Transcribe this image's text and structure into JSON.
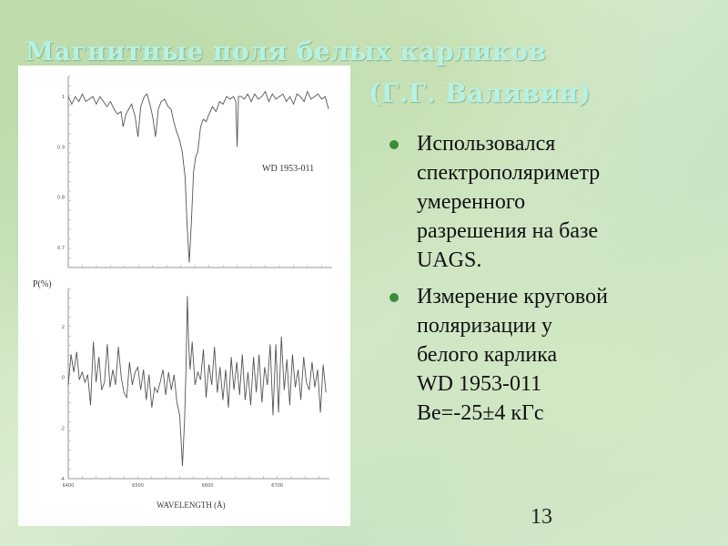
{
  "slide": {
    "title_line1": "Магнитные поля белых карликов",
    "title_line2": "(Г.Г. Валявин)",
    "title_color": "#b6f2e4",
    "bullet_color": "#3e8a3a",
    "bullets": [
      {
        "lines": [
          "Использовался",
          "спектрополяриметр",
          "умеренного",
          "разрешения на базе",
          "UAGS."
        ]
      },
      {
        "lines": [
          "Измерение круговой",
          "поляризации у",
          "белого карлика",
          "WD 1953-011",
          "Be=-25±4 кГс"
        ]
      }
    ],
    "page_number": "13"
  },
  "chart_data": [
    {
      "type": "line",
      "annotation": "WD 1953-011",
      "xlim": [
        6400,
        6775
      ],
      "ylim": [
        0.66,
        1.04
      ],
      "yticks": [
        "1",
        "0.9",
        "0.8",
        "0.7"
      ],
      "ytick_values": [
        1,
        0.9,
        0.8,
        0.7
      ],
      "x": [
        6400,
        6405,
        6410,
        6415,
        6420,
        6425,
        6430,
        6435,
        6440,
        6445,
        6450,
        6455,
        6460,
        6465,
        6470,
        6475,
        6478,
        6482,
        6486,
        6490,
        6495,
        6499,
        6503,
        6508,
        6512,
        6516,
        6520,
        6524,
        6528,
        6532,
        6537,
        6542,
        6546,
        6550,
        6554,
        6558,
        6562,
        6566,
        6569,
        6572,
        6575,
        6578,
        6581,
        6584,
        6588,
        6592,
        6596,
        6600,
        6605,
        6610,
        6615,
        6620,
        6625,
        6630,
        6635,
        6638,
        6640,
        6642,
        6646,
        6650,
        6655,
        6660,
        6665,
        6670,
        6675,
        6680,
        6685,
        6690,
        6695,
        6700,
        6705,
        6710,
        6715,
        6720,
        6725,
        6730,
        6735,
        6740,
        6745,
        6750,
        6755,
        6760,
        6765,
        6770
      ],
      "y": [
        1.0,
        0.985,
        1.0,
        0.99,
        1.005,
        0.99,
        0.995,
        1.0,
        0.985,
        1.0,
        0.99,
        0.98,
        0.99,
        0.975,
        0.965,
        0.97,
        0.94,
        0.965,
        0.975,
        0.985,
        0.96,
        0.92,
        0.98,
        1.0,
        1.005,
        0.985,
        0.96,
        0.92,
        0.975,
        0.99,
        0.995,
        0.98,
        0.975,
        0.95,
        0.93,
        0.915,
        0.89,
        0.84,
        0.74,
        0.67,
        0.75,
        0.85,
        0.88,
        0.89,
        0.94,
        0.955,
        0.95,
        0.965,
        0.98,
        0.97,
        0.99,
        0.985,
        1.0,
        0.995,
        1.0,
        0.99,
        0.9,
        1.0,
        1.0,
        0.995,
        1.005,
        0.99,
        1.005,
        0.995,
        1.0,
        1.01,
        0.99,
        1.005,
        0.995,
        1.0,
        1.005,
        0.99,
        1.0,
        0.985,
        1.005,
        1.0,
        0.99,
        1.01,
        0.995,
        1.0,
        1.005,
        0.995,
        1.0,
        0.975
      ]
    },
    {
      "type": "line",
      "ylabel": "P(%)",
      "xlabel": "WAVELENGTH (Å)",
      "xlim": [
        6400,
        6775
      ],
      "ylim": [
        -4,
        3.5
      ],
      "xticks": [
        "6400",
        "6500",
        "6600",
        "6700"
      ],
      "xtick_values": [
        6400,
        6500,
        6600,
        6700
      ],
      "yticks": [
        "2",
        "0",
        "-2",
        "-4"
      ],
      "ytick_values": [
        2,
        0,
        -2,
        -4
      ],
      "x": [
        6400,
        6404,
        6408,
        6412,
        6416,
        6420,
        6424,
        6428,
        6432,
        6436,
        6440,
        6444,
        6448,
        6452,
        6456,
        6460,
        6464,
        6468,
        6472,
        6476,
        6480,
        6484,
        6488,
        6492,
        6496,
        6500,
        6504,
        6508,
        6512,
        6516,
        6520,
        6524,
        6528,
        6532,
        6536,
        6540,
        6544,
        6548,
        6552,
        6556,
        6560,
        6564,
        6567,
        6569,
        6571,
        6573,
        6575,
        6578,
        6582,
        6586,
        6590,
        6594,
        6598,
        6602,
        6606,
        6610,
        6614,
        6618,
        6622,
        6626,
        6630,
        6634,
        6638,
        6642,
        6646,
        6650,
        6654,
        6658,
        6662,
        6666,
        6670,
        6674,
        6678,
        6682,
        6686,
        6690,
        6694,
        6698,
        6702,
        6706,
        6710,
        6714,
        6718,
        6722,
        6726,
        6730,
        6734,
        6738,
        6742,
        6746,
        6750,
        6754,
        6758,
        6762,
        6766,
        6770
      ],
      "y": [
        -0.3,
        0.9,
        0.2,
        1.0,
        -0.1,
        0.2,
        -0.2,
        0.1,
        -1.1,
        1.4,
        -0.2,
        0.8,
        -0.5,
        -0.2,
        1.3,
        -0.4,
        0.3,
        -0.3,
        1.2,
        0.0,
        -0.6,
        -0.8,
        0.6,
        -0.3,
        0.2,
        0.4,
        -0.5,
        0.3,
        -0.9,
        0.1,
        -1.2,
        -0.4,
        -0.6,
        -0.2,
        0.3,
        -0.7,
        0.2,
        -0.5,
        0.1,
        -1.0,
        -1.5,
        -3.5,
        -1.7,
        0.2,
        3.2,
        1.2,
        0.3,
        1.4,
        -0.3,
        0.2,
        -0.1,
        1.1,
        -0.8,
        0.5,
        -0.3,
        1.2,
        -0.6,
        0.4,
        -0.9,
        0.3,
        -1.2,
        0.8,
        -0.5,
        0.6,
        -0.7,
        0.9,
        -0.9,
        0.2,
        -1.1,
        0.8,
        -0.6,
        0.9,
        -1.0,
        0.4,
        -0.3,
        1.3,
        -1.5,
        1.3,
        -1.4,
        1.6,
        -0.5,
        0.7,
        -1.1,
        0.9,
        -0.4,
        0.3,
        -0.9,
        0.8,
        -0.2,
        -0.5,
        0.6,
        -0.4,
        0.3,
        -1.4,
        0.5,
        -0.6
      ]
    }
  ]
}
